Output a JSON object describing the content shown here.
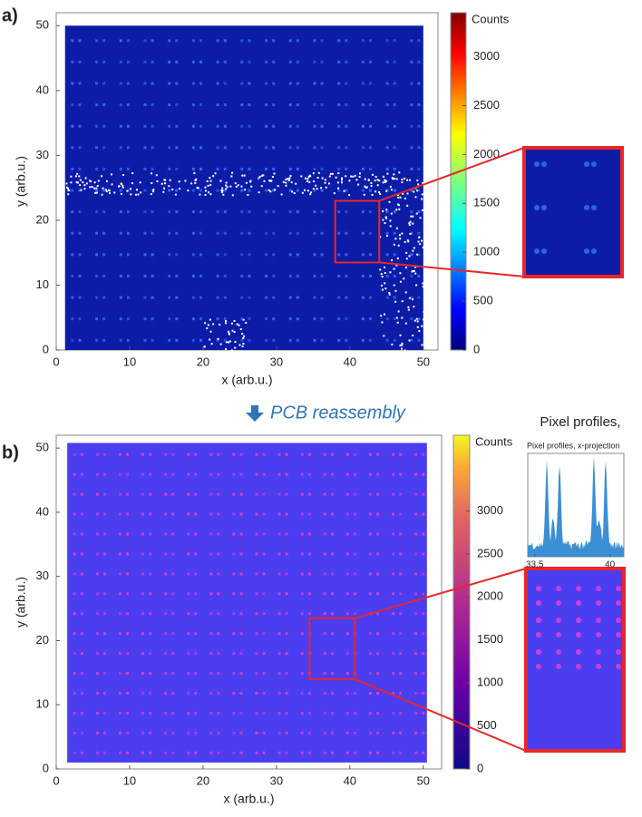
{
  "chart_data": [
    {
      "type": "heatmap",
      "panel_label": "a)",
      "xlabel": "x (arb.u.)",
      "ylabel": "y (arb.u.)",
      "xlim": [
        0,
        52
      ],
      "ylim": [
        0,
        52
      ],
      "xticks": [
        0,
        10,
        20,
        30,
        40,
        50
      ],
      "yticks": [
        0,
        10,
        20,
        30,
        40,
        50
      ],
      "colorbar": {
        "label": "Counts",
        "colormap": "jet",
        "lim": [
          0,
          3450
        ],
        "ticks": [
          0,
          500,
          1000,
          1500,
          2000,
          2500,
          3000
        ]
      }
    },
    {
      "type": "heatmap",
      "panel_label": "b)",
      "xlabel": "x (arb.u.)",
      "ylabel": "y (arb.u.)",
      "xlim": [
        0,
        52.5
      ],
      "ylim": [
        0,
        52
      ],
      "xticks": [
        0,
        10,
        20,
        30,
        40,
        50
      ],
      "yticks": [
        0,
        10,
        20,
        30,
        40,
        50
      ],
      "colorbar": {
        "label": "Counts",
        "colormap": "plasma",
        "lim": [
          0,
          3880
        ],
        "ticks": [
          0,
          500,
          1000,
          1500,
          2000,
          2500,
          3000
        ]
      }
    },
    {
      "type": "profile",
      "heading": "Pixel profiles,",
      "title": "Pixel profiles, x-projection",
      "xlim": [
        32.9,
        41.2
      ],
      "xticks": [
        {
          "value": 33.5,
          "label": "33,5"
        },
        40
      ],
      "color": "#3b8fd4"
    }
  ],
  "annotation": "PCB reassembly"
}
